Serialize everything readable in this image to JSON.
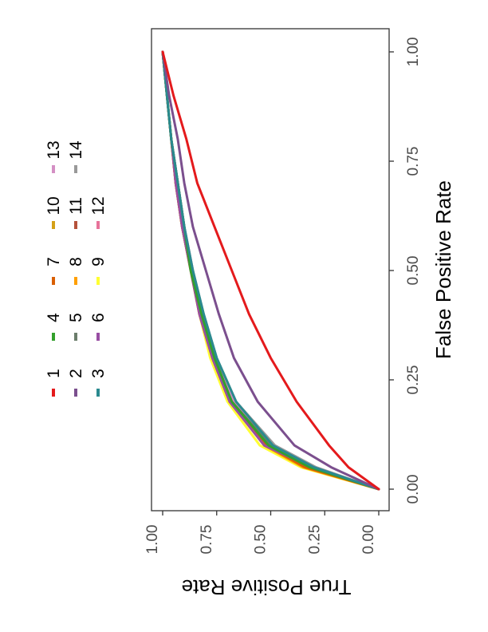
{
  "chart_data": {
    "type": "line",
    "xlabel": "False Positive Rate",
    "ylabel": "True Positive Rate",
    "xlim": [
      0,
      1
    ],
    "ylim": [
      0,
      1
    ],
    "x_ticks": [
      "0.00",
      "0.25",
      "0.50",
      "0.75",
      "1.00"
    ],
    "y_ticks": [
      "0.00",
      "0.25",
      "0.50",
      "0.75",
      "1.00"
    ],
    "grid": false,
    "legend_position": "top",
    "rotation": "plot rotated 90 degrees clockwise",
    "series": [
      {
        "name": "1",
        "color": "#e41a1c",
        "x": [
          0,
          0.05,
          0.1,
          0.2,
          0.3,
          0.4,
          0.5,
          0.6,
          0.7,
          0.8,
          0.9,
          1.0
        ],
        "y": [
          0,
          0.14,
          0.23,
          0.38,
          0.5,
          0.6,
          0.68,
          0.76,
          0.84,
          0.89,
          0.95,
          1.0
        ]
      },
      {
        "name": "2",
        "color": "#7b4f8e",
        "x": [
          0,
          0.05,
          0.1,
          0.2,
          0.3,
          0.4,
          0.5,
          0.6,
          0.7,
          0.8,
          0.9,
          1.0
        ],
        "y": [
          0,
          0.22,
          0.39,
          0.56,
          0.67,
          0.74,
          0.8,
          0.86,
          0.9,
          0.93,
          0.97,
          1.0
        ]
      },
      {
        "name": "3",
        "color": "#2a8a8f",
        "x": [
          0,
          0.05,
          0.1,
          0.2,
          0.3,
          0.4,
          0.5,
          0.6,
          0.7,
          0.8,
          0.9,
          1.0
        ],
        "y": [
          0,
          0.3,
          0.49,
          0.66,
          0.75,
          0.81,
          0.86,
          0.9,
          0.93,
          0.96,
          0.98,
          1.0
        ]
      },
      {
        "name": "4",
        "color": "#33a02c",
        "x": [
          0,
          0.05,
          0.1,
          0.2,
          0.3,
          0.4,
          0.5,
          0.6,
          0.7,
          0.8,
          0.9,
          1.0
        ],
        "y": [
          0,
          0.32,
          0.51,
          0.68,
          0.76,
          0.82,
          0.87,
          0.9,
          0.93,
          0.96,
          0.98,
          1.0
        ]
      },
      {
        "name": "5",
        "color": "#6b7d6b",
        "x": [
          0,
          0.05,
          0.1,
          0.2,
          0.3,
          0.4,
          0.5,
          0.6,
          0.7,
          0.8,
          0.9,
          1.0
        ],
        "y": [
          0,
          0.31,
          0.5,
          0.68,
          0.76,
          0.82,
          0.87,
          0.9,
          0.93,
          0.96,
          0.98,
          1.0
        ]
      },
      {
        "name": "6",
        "color": "#984ea3",
        "x": [
          0,
          0.05,
          0.1,
          0.2,
          0.3,
          0.4,
          0.5,
          0.6,
          0.7,
          0.8,
          0.9,
          1.0
        ],
        "y": [
          0,
          0.31,
          0.53,
          0.69,
          0.77,
          0.83,
          0.87,
          0.91,
          0.94,
          0.96,
          0.98,
          1.0
        ]
      },
      {
        "name": "7",
        "color": "#d95f02",
        "x": [
          0,
          0.05,
          0.1,
          0.2,
          0.3,
          0.4,
          0.5,
          0.6,
          0.7,
          0.8,
          0.9,
          1.0
        ],
        "y": [
          0,
          0.34,
          0.52,
          0.69,
          0.77,
          0.83,
          0.87,
          0.91,
          0.94,
          0.96,
          0.98,
          1.0
        ]
      },
      {
        "name": "8",
        "color": "#ff9f00",
        "x": [
          0,
          0.05,
          0.1,
          0.2,
          0.3,
          0.4,
          0.5,
          0.6,
          0.7,
          0.8,
          0.9,
          1.0
        ],
        "y": [
          0,
          0.35,
          0.53,
          0.69,
          0.77,
          0.83,
          0.87,
          0.91,
          0.94,
          0.96,
          0.98,
          1.0
        ]
      },
      {
        "name": "9",
        "color": "#ffff33",
        "x": [
          0,
          0.05,
          0.1,
          0.2,
          0.3,
          0.4,
          0.5,
          0.6,
          0.7,
          0.8,
          0.9,
          1.0
        ],
        "y": [
          0,
          0.36,
          0.55,
          0.7,
          0.78,
          0.83,
          0.87,
          0.91,
          0.94,
          0.96,
          0.98,
          1.0
        ]
      },
      {
        "name": "10",
        "color": "#d4a017",
        "x": [
          0,
          0.05,
          0.1,
          0.2,
          0.3,
          0.4,
          0.5,
          0.6,
          0.7,
          0.8,
          0.9,
          1.0
        ],
        "y": [
          0,
          0.33,
          0.52,
          0.69,
          0.77,
          0.83,
          0.87,
          0.91,
          0.94,
          0.96,
          0.98,
          1.0
        ]
      },
      {
        "name": "11",
        "color": "#b5523b",
        "x": [
          0,
          0.05,
          0.1,
          0.2,
          0.3,
          0.4,
          0.5,
          0.6,
          0.7,
          0.8,
          0.9,
          1.0
        ],
        "y": [
          0,
          0.33,
          0.51,
          0.68,
          0.77,
          0.82,
          0.87,
          0.91,
          0.94,
          0.96,
          0.98,
          1.0
        ]
      },
      {
        "name": "12",
        "color": "#e7739a",
        "x": [
          0,
          0.05,
          0.1,
          0.2,
          0.3,
          0.4,
          0.5,
          0.6,
          0.7,
          0.8,
          0.9,
          1.0
        ],
        "y": [
          0,
          0.32,
          0.5,
          0.68,
          0.76,
          0.82,
          0.87,
          0.9,
          0.93,
          0.96,
          0.98,
          1.0
        ]
      },
      {
        "name": "13",
        "color": "#d48fc4",
        "x": [
          0,
          0.05,
          0.1,
          0.2,
          0.3,
          0.4,
          0.5,
          0.6,
          0.7,
          0.8,
          0.9,
          1.0
        ],
        "y": [
          0,
          0.3,
          0.49,
          0.67,
          0.76,
          0.82,
          0.86,
          0.9,
          0.93,
          0.96,
          0.98,
          1.0
        ]
      },
      {
        "name": "14",
        "color": "#999999",
        "x": [
          0,
          0.05,
          0.1,
          0.2,
          0.3,
          0.4,
          0.5,
          0.6,
          0.7,
          0.8,
          0.9,
          1.0
        ],
        "y": [
          0,
          0.29,
          0.48,
          0.66,
          0.75,
          0.81,
          0.86,
          0.9,
          0.93,
          0.96,
          0.98,
          1.0
        ]
      }
    ]
  }
}
